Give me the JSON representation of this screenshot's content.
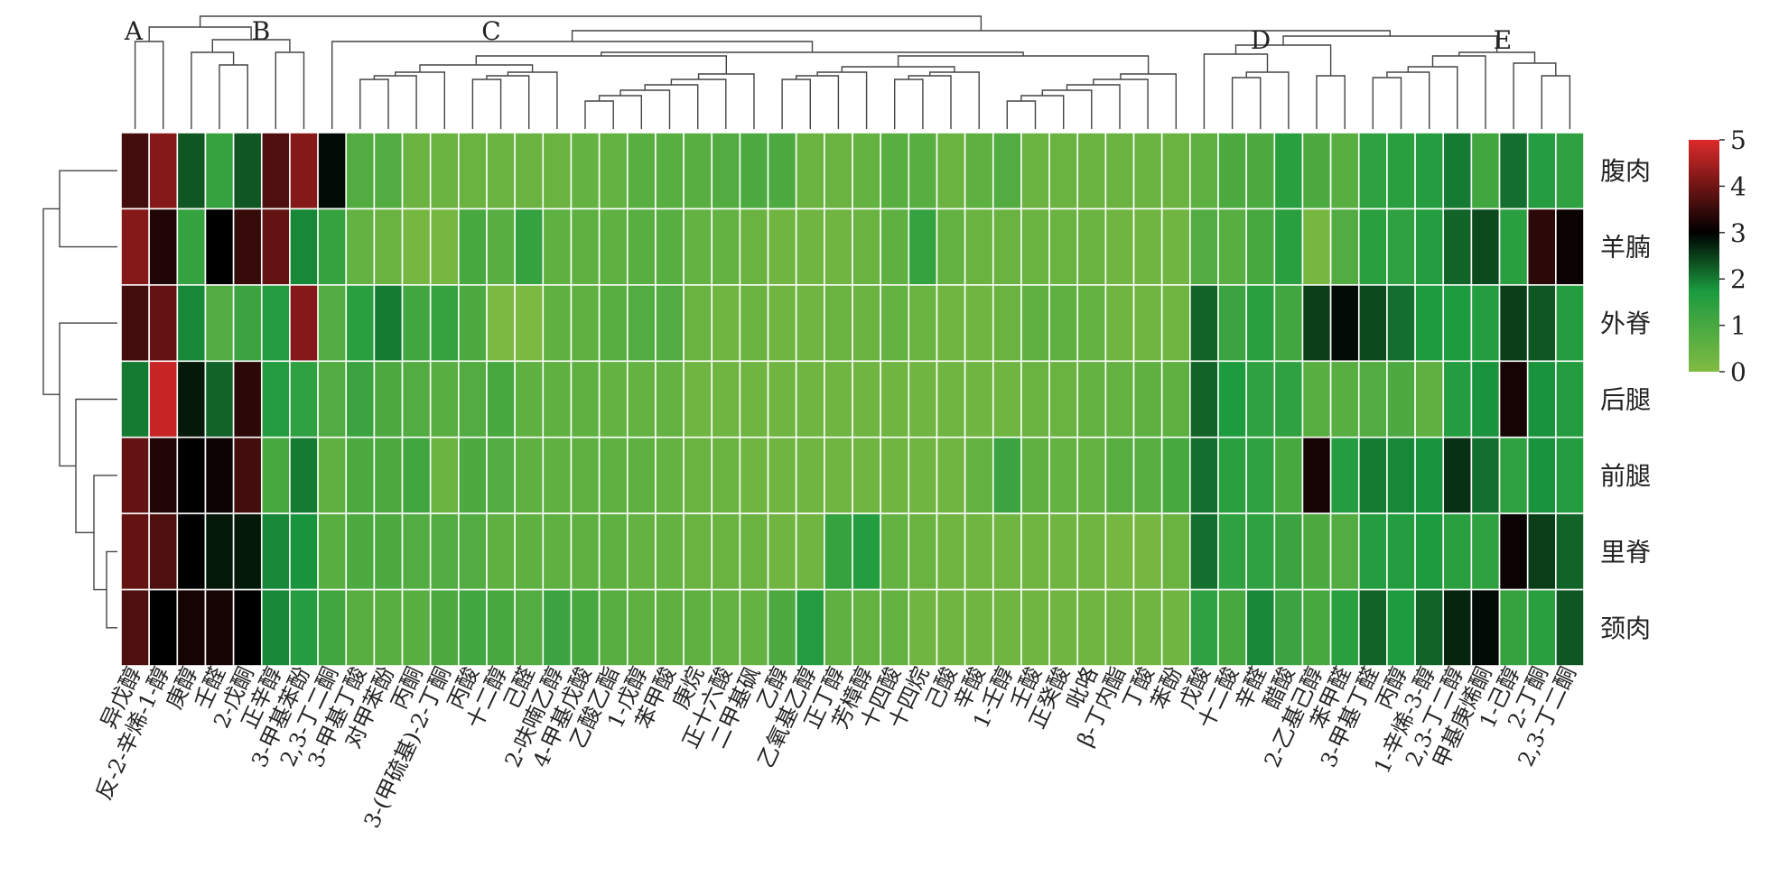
{
  "chart_data": {
    "type": "heatmap",
    "title": "",
    "rows": [
      "腹肉",
      "羊腩",
      "外脊",
      "后腿",
      "前腿",
      "里脊",
      "颈肉"
    ],
    "columns": [
      "异戊醇",
      "反-2-辛烯-1-醇",
      "庚醇",
      "壬醛",
      "2-戊酮",
      "正辛醇",
      "3-甲基苯酚",
      "2,3-丁二酮",
      "3-甲基丁酸",
      "对甲苯酚",
      "丙酮",
      "3-(甲硫基)-2-丁酮",
      "丙酸",
      "十二醇",
      "己醛",
      "2-呋喃乙醇",
      "4-甲基戊酸",
      "乙酸乙酯",
      "1-戊醇",
      "苯甲酸",
      "庚烷",
      "正十六酸",
      "二甲基砜",
      "乙醇",
      "乙氧基乙醇",
      "正丁醇",
      "芳樟醇",
      "十四酸",
      "十四烷",
      "己酸",
      "辛酸",
      "1-壬醇",
      "壬酸",
      "正癸酸",
      "吡咯",
      "β-丁内酯",
      "丁酸",
      "苯酚",
      "戊酸",
      "十二酸",
      "辛醛",
      "醋酸",
      "2-乙基己醇",
      "苯甲醛",
      "3-甲基丁醛",
      "丙醇",
      "1-辛烯-3-醇",
      "2,3-丁二醇",
      "甲基庚烯酮",
      "1-己醇",
      "2-丁酮",
      "2,3-丁二酮"
    ],
    "values": [
      [
        3.6,
        4.2,
        2.3,
        1.3,
        2.3,
        3.7,
        4.2,
        2.9,
        0.8,
        0.8,
        0.4,
        0.4,
        0.4,
        0.4,
        0.4,
        0.4,
        0.5,
        0.5,
        0.7,
        0.7,
        0.7,
        0.8,
        0.9,
        0.9,
        0.4,
        0.4,
        0.5,
        0.7,
        0.7,
        0.4,
        0.6,
        0.8,
        0.4,
        0.4,
        0.4,
        0.4,
        0.4,
        0.4,
        0.6,
        0.9,
        0.9,
        1.5,
        0.9,
        0.7,
        1.4,
        1.5,
        1.6,
        2.0,
        1.1,
        2.1,
        1.6,
        1.4
      ],
      [
        4.2,
        3.3,
        1.3,
        3.0,
        3.5,
        3.9,
        1.9,
        1.3,
        0.5,
        0.4,
        0.2,
        0.2,
        1.0,
        0.7,
        1.3,
        0.6,
        0.6,
        0.6,
        0.7,
        0.7,
        0.5,
        0.5,
        0.4,
        0.3,
        0.3,
        0.3,
        0.4,
        0.6,
        1.3,
        0.5,
        0.4,
        0.4,
        0.4,
        0.4,
        0.4,
        0.3,
        0.3,
        0.3,
        0.8,
        0.7,
        1.0,
        1.5,
        0.2,
        0.8,
        1.5,
        1.4,
        1.6,
        2.2,
        2.4,
        1.5,
        3.4,
        3.1
      ],
      [
        3.6,
        3.9,
        1.9,
        0.8,
        1.2,
        1.6,
        4.2,
        0.8,
        1.5,
        2.0,
        1.1,
        1.3,
        0.9,
        0.1,
        0.1,
        0.6,
        0.6,
        0.7,
        0.8,
        0.8,
        0.4,
        0.3,
        0.4,
        0.3,
        0.3,
        0.4,
        0.4,
        0.5,
        0.4,
        0.3,
        0.3,
        0.4,
        0.6,
        0.6,
        0.5,
        0.3,
        0.3,
        0.3,
        2.2,
        1.2,
        1.5,
        1.1,
        2.5,
        2.9,
        2.4,
        2.1,
        1.7,
        1.7,
        1.6,
        2.5,
        2.3,
        1.6
      ],
      [
        2.0,
        4.8,
        2.8,
        2.2,
        3.4,
        1.6,
        1.4,
        0.8,
        1.2,
        0.9,
        0.8,
        0.7,
        0.8,
        1.0,
        0.6,
        0.6,
        0.6,
        0.5,
        0.5,
        0.5,
        0.3,
        0.3,
        0.3,
        0.3,
        0.3,
        0.3,
        0.3,
        0.3,
        0.3,
        0.3,
        0.3,
        0.3,
        0.4,
        0.4,
        0.5,
        0.5,
        0.6,
        0.6,
        2.2,
        1.7,
        1.4,
        1.4,
        0.7,
        0.7,
        0.8,
        0.9,
        0.6,
        1.6,
        1.8,
        3.2,
        1.8,
        1.6
      ],
      [
        3.9,
        3.3,
        3.0,
        3.1,
        3.6,
        1.0,
        2.0,
        0.6,
        0.9,
        0.9,
        1.1,
        0.4,
        0.9,
        0.8,
        0.6,
        0.6,
        0.6,
        0.6,
        0.6,
        0.5,
        0.4,
        0.4,
        0.3,
        0.3,
        0.3,
        0.3,
        0.3,
        0.3,
        0.3,
        0.3,
        0.5,
        1.2,
        0.6,
        0.5,
        0.5,
        0.7,
        0.7,
        1.0,
        2.1,
        1.5,
        1.4,
        1.0,
        3.2,
        1.6,
        2.0,
        1.9,
        1.8,
        2.6,
        2.1,
        1.4,
        1.8,
        1.6
      ],
      [
        3.9,
        3.7,
        3.0,
        2.8,
        2.8,
        1.9,
        1.8,
        0.7,
        0.9,
        0.9,
        0.8,
        0.8,
        0.8,
        0.6,
        0.6,
        0.6,
        0.6,
        0.6,
        0.5,
        0.5,
        0.4,
        0.4,
        0.4,
        0.3,
        0.3,
        1.3,
        1.6,
        0.5,
        0.4,
        0.3,
        0.3,
        0.3,
        0.3,
        0.3,
        0.3,
        0.2,
        0.2,
        0.4,
        2.1,
        1.4,
        1.4,
        1.2,
        0.9,
        0.8,
        1.6,
        1.6,
        1.7,
        1.5,
        1.4,
        3.1,
        2.5,
        2.2
      ],
      [
        3.7,
        3.0,
        3.2,
        3.2,
        3.0,
        1.9,
        1.6,
        1.1,
        0.7,
        0.7,
        0.7,
        0.9,
        1.1,
        1.0,
        0.8,
        1.2,
        1.0,
        0.7,
        0.6,
        0.6,
        0.6,
        0.5,
        0.5,
        0.9,
        1.6,
        0.6,
        0.5,
        0.5,
        0.3,
        0.3,
        0.3,
        0.3,
        0.3,
        0.3,
        0.3,
        0.3,
        0.3,
        0.3,
        1.4,
        1.0,
        1.9,
        1.2,
        1.0,
        1.5,
        2.2,
        1.7,
        2.2,
        2.7,
        2.9,
        1.3,
        1.5,
        2.3
      ]
    ],
    "color_scale": {
      "min": 0,
      "max": 5,
      "ticks": [
        "0",
        "1",
        "2",
        "3",
        "4",
        "5"
      ],
      "colors": [
        "#82bb42",
        "#1a9a3f",
        "#000000",
        "#de2a2a"
      ]
    },
    "cluster_labels": [
      "A",
      "B",
      "C",
      "D",
      "E"
    ],
    "legend_position": "right"
  }
}
